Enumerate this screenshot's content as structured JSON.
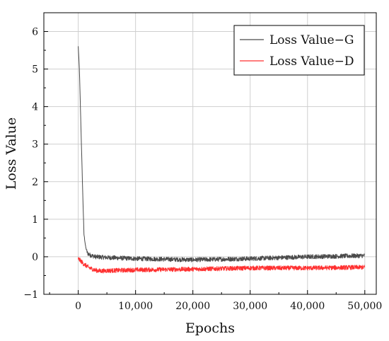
{
  "chart_data": {
    "type": "line",
    "title": "",
    "xlabel": "Epochs",
    "ylabel": "Loss Value",
    "xlim": [
      -6000,
      52000
    ],
    "ylim": [
      -1,
      6.5
    ],
    "xticks": [
      0,
      10000,
      20000,
      30000,
      40000,
      50000
    ],
    "xtick_labels": [
      "0",
      "10,000",
      "20,000",
      "30,000",
      "40,000",
      "50,000"
    ],
    "yticks": [
      -1,
      0,
      1,
      2,
      3,
      4,
      5,
      6
    ],
    "ytick_labels": [
      "−1",
      "0",
      "1",
      "2",
      "3",
      "4",
      "5",
      "6"
    ],
    "grid": true,
    "legend_position": "top-right",
    "series": [
      {
        "name": "Loss Value−G",
        "color": "#4a4a4a",
        "noise": 0.06,
        "x": [
          0,
          200,
          500,
          800,
          1000,
          1300,
          1600,
          2000,
          3000,
          5000,
          10000,
          20000,
          30000,
          40000,
          50000
        ],
        "y": [
          5.6,
          5.0,
          3.3,
          1.6,
          0.6,
          0.25,
          0.1,
          0.05,
          0.0,
          -0.02,
          -0.05,
          -0.08,
          -0.05,
          0.0,
          0.03
        ]
      },
      {
        "name": "Loss Value−D",
        "color": "#ff3030",
        "noise": 0.06,
        "x": [
          0,
          500,
          1000,
          2000,
          3000,
          4000,
          5000,
          10000,
          20000,
          30000,
          40000,
          50000
        ],
        "y": [
          -0.05,
          -0.12,
          -0.2,
          -0.3,
          -0.36,
          -0.38,
          -0.37,
          -0.35,
          -0.33,
          -0.3,
          -0.3,
          -0.28
        ]
      }
    ]
  }
}
